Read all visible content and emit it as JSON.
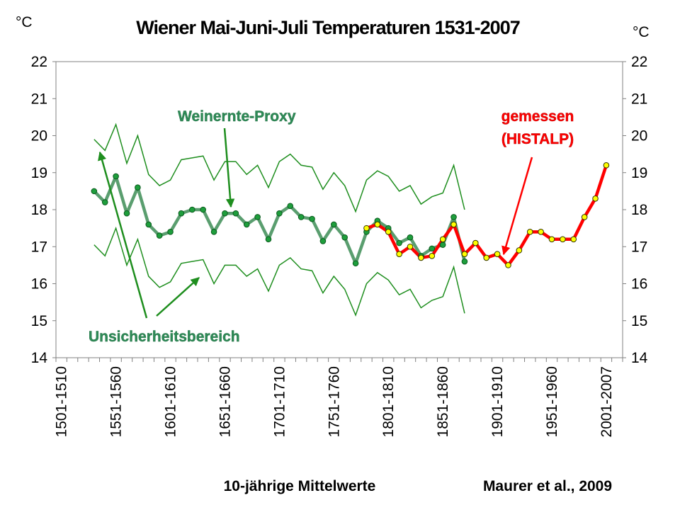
{
  "chart_data": {
    "type": "line",
    "title": "Wiener Mai-Juni-Juli Temperaturen 1531-2007",
    "ylabel_left": "°C",
    "ylabel_right": "°C",
    "xlabel": "10-jährige Mittelwerte",
    "source": "Maurer et al., 2009",
    "ylim": [
      14,
      22
    ],
    "yticks": [
      "14",
      "15",
      "16",
      "17",
      "18",
      "19",
      "20",
      "21",
      "22"
    ],
    "xtick_labels": [
      "1501-1510",
      "1551-1560",
      "1601-1610",
      "1651-1660",
      "1701-1710",
      "1751-1760",
      "1801-1810",
      "1851-1860",
      "1901-1910",
      "1951-1960",
      "2001-2007"
    ],
    "decades": [
      "1501-1510",
      "1511-1520",
      "1521-1530",
      "1531-1540",
      "1541-1550",
      "1551-1560",
      "1561-1570",
      "1571-1580",
      "1581-1590",
      "1591-1600",
      "1601-1610",
      "1611-1620",
      "1621-1630",
      "1631-1640",
      "1641-1650",
      "1651-1660",
      "1661-1670",
      "1671-1680",
      "1681-1690",
      "1691-1700",
      "1701-1710",
      "1711-1720",
      "1721-1730",
      "1731-1740",
      "1741-1750",
      "1751-1760",
      "1761-1770",
      "1771-1780",
      "1781-1790",
      "1791-1800",
      "1801-1810",
      "1811-1820",
      "1821-1830",
      "1831-1840",
      "1841-1850",
      "1851-1860",
      "1861-1870",
      "1871-1880",
      "1881-1890",
      "1891-1900",
      "1901-1910",
      "1911-1920",
      "1921-1930",
      "1931-1940",
      "1941-1950",
      "1951-1960",
      "1961-1970",
      "1971-1980",
      "1981-1990",
      "1991-2000",
      "2001-2007"
    ],
    "grid": false,
    "annotations": {
      "proxy": "Weinernte-Proxy",
      "measured_line1": "gemessen",
      "measured_line2": "(HISTALP)",
      "uncertainty": "Unsicherheitsbereich"
    },
    "colors": {
      "proxy_line": "#5a9e6f",
      "proxy_marker": "#1e9e3c",
      "band": "#1e8e1e",
      "measured_line": "#ff0000",
      "measured_marker": "#ffff00",
      "arrow_green": "#1e8e1e",
      "arrow_red": "#ff0000"
    },
    "series": [
      {
        "name": "Weinernte-Proxy",
        "start_index": 3,
        "values": [
          18.5,
          18.2,
          18.9,
          17.9,
          18.6,
          17.6,
          17.3,
          17.4,
          17.9,
          18.0,
          18.0,
          17.4,
          17.9,
          17.9,
          17.6,
          17.8,
          17.2,
          17.9,
          18.1,
          17.8,
          17.75,
          17.15,
          17.6,
          17.25,
          16.55,
          17.4,
          17.7,
          17.5,
          17.1,
          17.25,
          16.75,
          16.95,
          17.05,
          17.8,
          16.6
        ]
      },
      {
        "name": "Unsicherheitsbereich (oben)",
        "start_index": 3,
        "values": [
          19.9,
          19.6,
          20.3,
          19.25,
          20.0,
          18.95,
          18.65,
          18.8,
          19.35,
          19.4,
          19.45,
          18.8,
          19.3,
          19.3,
          18.95,
          19.2,
          18.6,
          19.3,
          19.5,
          19.2,
          19.15,
          18.55,
          19.0,
          18.65,
          17.95,
          18.8,
          19.05,
          18.9,
          18.5,
          18.65,
          18.15,
          18.35,
          18.45,
          19.2,
          18.0
        ]
      },
      {
        "name": "Unsicherheitsbereich (unten)",
        "start_index": 3,
        "values": [
          17.05,
          16.75,
          17.5,
          16.5,
          17.2,
          16.2,
          15.9,
          16.05,
          16.55,
          16.6,
          16.65,
          16.0,
          16.5,
          16.5,
          16.2,
          16.4,
          15.8,
          16.5,
          16.7,
          16.4,
          16.35,
          15.75,
          16.2,
          15.85,
          15.15,
          16.0,
          16.3,
          16.1,
          15.7,
          15.85,
          15.35,
          15.55,
          15.65,
          16.45,
          15.2
        ]
      },
      {
        "name": "gemessen (HISTALP)",
        "start_index": 28,
        "values": [
          17.5,
          17.6,
          17.4,
          16.8,
          17.0,
          16.7,
          16.75,
          17.2,
          17.6,
          16.8,
          17.1,
          16.7,
          16.8,
          16.5,
          16.9,
          17.4,
          17.4,
          17.2,
          17.2,
          17.2,
          17.8,
          18.3,
          19.2
        ]
      }
    ]
  }
}
